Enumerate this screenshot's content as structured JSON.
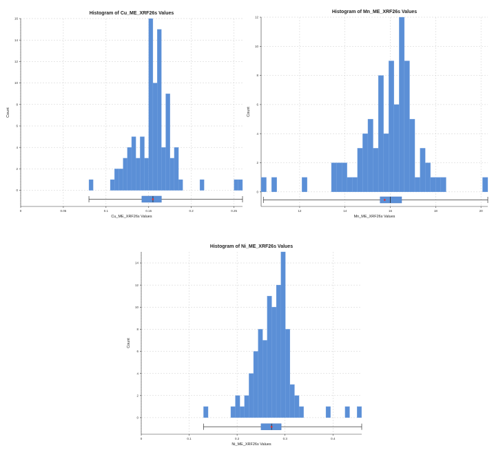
{
  "chart_data": [
    {
      "type": "histogram",
      "title": "Histogram of Cu_ME_XRF26s Values",
      "xlabel": "Cu_ME_XRF26s Values",
      "ylabel": "Count",
      "xlim": [
        0,
        0.26
      ],
      "ylim": [
        -1.5,
        16
      ],
      "xticks": [
        0,
        0.05,
        0.1,
        0.15,
        0.2,
        0.25
      ],
      "xtick_labels": [
        "0",
        "0.05",
        "0.1",
        "0.15",
        "0.2",
        "0.25"
      ],
      "yticks": [
        0,
        2,
        4,
        6,
        8,
        10,
        12,
        14,
        16
      ],
      "grid": true,
      "bin_width": 0.005,
      "bins": [
        {
          "x0": 0.08,
          "count": 1
        },
        {
          "x0": 0.105,
          "count": 1
        },
        {
          "x0": 0.11,
          "count": 2
        },
        {
          "x0": 0.115,
          "count": 2
        },
        {
          "x0": 0.12,
          "count": 3
        },
        {
          "x0": 0.125,
          "count": 4
        },
        {
          "x0": 0.13,
          "count": 5
        },
        {
          "x0": 0.135,
          "count": 3
        },
        {
          "x0": 0.14,
          "count": 5
        },
        {
          "x0": 0.145,
          "count": 3
        },
        {
          "x0": 0.15,
          "count": 16
        },
        {
          "x0": 0.155,
          "count": 10
        },
        {
          "x0": 0.16,
          "count": 15
        },
        {
          "x0": 0.165,
          "count": 4
        },
        {
          "x0": 0.17,
          "count": 9
        },
        {
          "x0": 0.175,
          "count": 3
        },
        {
          "x0": 0.18,
          "count": 4
        },
        {
          "x0": 0.185,
          "count": 1
        },
        {
          "x0": 0.21,
          "count": 1
        },
        {
          "x0": 0.25,
          "count": 1
        },
        {
          "x0": 0.255,
          "count": 1
        }
      ],
      "box": {
        "min": 0.08,
        "q1": 0.142,
        "median": 0.155,
        "q3": 0.165,
        "max": 0.26,
        "mean": 0.155
      }
    },
    {
      "type": "histogram",
      "title": "Histogram of Mn_ME_XRF26s Values",
      "xlabel": "Mn_ME_XRF26s Values",
      "ylabel": "Count",
      "xlim": [
        10.3,
        20.3
      ],
      "ylim": [
        -1.0,
        12
      ],
      "xticks": [
        12,
        14,
        16,
        18,
        20
      ],
      "xtick_labels": [
        "12",
        "14",
        "16",
        "18",
        "20"
      ],
      "yticks": [
        0,
        2,
        4,
        6,
        8,
        10,
        12
      ],
      "grid": true,
      "bin_width": 0.23,
      "bins": [
        {
          "x0": 10.3,
          "count": 1
        },
        {
          "x0": 10.76,
          "count": 1
        },
        {
          "x0": 12.1,
          "count": 1
        },
        {
          "x0": 13.4,
          "count": 2
        },
        {
          "x0": 13.63,
          "count": 2
        },
        {
          "x0": 13.86,
          "count": 2
        },
        {
          "x0": 14.09,
          "count": 1
        },
        {
          "x0": 14.32,
          "count": 1
        },
        {
          "x0": 14.55,
          "count": 3
        },
        {
          "x0": 14.78,
          "count": 4
        },
        {
          "x0": 15.01,
          "count": 5
        },
        {
          "x0": 15.24,
          "count": 3
        },
        {
          "x0": 15.47,
          "count": 8
        },
        {
          "x0": 15.7,
          "count": 4
        },
        {
          "x0": 15.93,
          "count": 9
        },
        {
          "x0": 16.16,
          "count": 6
        },
        {
          "x0": 16.39,
          "count": 12
        },
        {
          "x0": 16.62,
          "count": 9
        },
        {
          "x0": 16.85,
          "count": 5
        },
        {
          "x0": 17.08,
          "count": 1
        },
        {
          "x0": 17.31,
          "count": 3
        },
        {
          "x0": 17.54,
          "count": 2
        },
        {
          "x0": 17.77,
          "count": 1
        },
        {
          "x0": 18.0,
          "count": 1
        },
        {
          "x0": 18.23,
          "count": 1
        },
        {
          "x0": 20.07,
          "count": 1
        }
      ],
      "box": {
        "min": 10.4,
        "q1": 15.55,
        "median": 16.0,
        "q3": 16.5,
        "max": 20.3,
        "mean": 15.75
      }
    },
    {
      "type": "histogram",
      "title": "Histogram of Ni_ME_XRF26s Values",
      "xlabel": "Ni_ME_XRF26s Values",
      "ylabel": "Count",
      "xlim": [
        0,
        0.46
      ],
      "ylim": [
        -1.5,
        15
      ],
      "xticks": [
        0,
        0.1,
        0.2,
        0.3,
        0.4
      ],
      "xtick_labels": [
        "0",
        "0.1",
        "0.2",
        "0.3",
        "0.4"
      ],
      "yticks": [
        0,
        2,
        4,
        6,
        8,
        10,
        12,
        14
      ],
      "grid": true,
      "bin_width": 0.0095,
      "bins": [
        {
          "x0": 0.13,
          "count": 1
        },
        {
          "x0": 0.1868,
          "count": 1
        },
        {
          "x0": 0.1963,
          "count": 2
        },
        {
          "x0": 0.2058,
          "count": 1
        },
        {
          "x0": 0.2153,
          "count": 2
        },
        {
          "x0": 0.2248,
          "count": 4
        },
        {
          "x0": 0.2343,
          "count": 6
        },
        {
          "x0": 0.2438,
          "count": 8
        },
        {
          "x0": 0.2533,
          "count": 7
        },
        {
          "x0": 0.2628,
          "count": 11
        },
        {
          "x0": 0.2723,
          "count": 10
        },
        {
          "x0": 0.2818,
          "count": 12
        },
        {
          "x0": 0.2913,
          "count": 15
        },
        {
          "x0": 0.3008,
          "count": 8
        },
        {
          "x0": 0.3103,
          "count": 3
        },
        {
          "x0": 0.3198,
          "count": 2
        },
        {
          "x0": 0.3293,
          "count": 1
        },
        {
          "x0": 0.3853,
          "count": 1
        },
        {
          "x0": 0.4253,
          "count": 1
        },
        {
          "x0": 0.4503,
          "count": 1
        }
      ],
      "box": {
        "min": 0.13,
        "q1": 0.25,
        "median": 0.272,
        "q3": 0.292,
        "max": 0.46,
        "mean": 0.272
      }
    }
  ]
}
